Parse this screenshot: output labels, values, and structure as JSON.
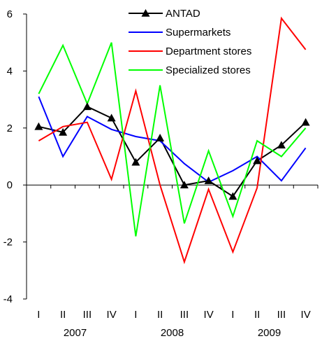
{
  "chart_data": {
    "type": "line",
    "categories": [
      "I",
      "II",
      "III",
      "IV",
      "I",
      "II",
      "III",
      "IV",
      "I",
      "II",
      "III",
      "IV"
    ],
    "year_groups": [
      {
        "label": "2007",
        "start": 0,
        "end": 3
      },
      {
        "label": "2008",
        "start": 4,
        "end": 7
      },
      {
        "label": "2009",
        "start": 8,
        "end": 11
      }
    ],
    "ylim": [
      -4,
      6
    ],
    "yticks": [
      -4,
      -2,
      0,
      2,
      4,
      6
    ],
    "ytick_labels": [
      "-4",
      "-2",
      "0",
      "2",
      "4",
      "6"
    ],
    "grid": false,
    "legend": "top-right",
    "series": [
      {
        "name": "ANTAD",
        "color": "#000000",
        "marker": "triangle",
        "values": [
          2.05,
          1.85,
          2.75,
          2.35,
          0.8,
          1.65,
          0.0,
          0.15,
          -0.4,
          0.85,
          1.4,
          2.2
        ]
      },
      {
        "name": "Supermarkets",
        "color": "#0000ff",
        "marker": "none",
        "values": [
          3.1,
          1.0,
          2.4,
          1.95,
          1.7,
          1.55,
          0.75,
          0.1,
          0.5,
          1.0,
          0.15,
          1.3
        ]
      },
      {
        "name": "Department stores",
        "color": "#ff0000",
        "marker": "none",
        "values": [
          1.55,
          2.05,
          2.2,
          0.2,
          3.3,
          0.0,
          -2.7,
          -0.15,
          -2.35,
          -0.1,
          5.85,
          4.75
        ]
      },
      {
        "name": "Specialized stores",
        "color": "#00ff00",
        "marker": "none",
        "values": [
          3.2,
          4.9,
          2.85,
          5.0,
          -1.8,
          3.5,
          -1.35,
          1.2,
          -1.1,
          1.55,
          1.0,
          2.0
        ]
      }
    ]
  }
}
